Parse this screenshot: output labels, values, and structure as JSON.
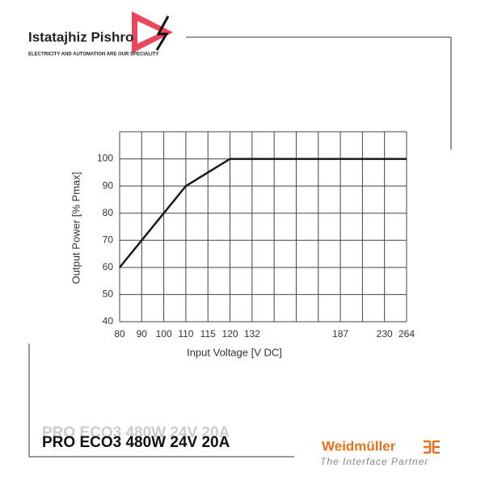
{
  "header": {
    "brand": "Istatajhiz Pishro",
    "tagline": "ELECTRICITY AND AUTOMATION ARE OUR SPECIALITY"
  },
  "chart_data": {
    "type": "line",
    "x_label": "Input Voltage [V DC]",
    "y_label": "Output Power [% Pmax]",
    "categories": [
      "80",
      "90",
      "100",
      "110",
      "115",
      "120",
      "132",
      null,
      null,
      null,
      "187",
      null,
      "230",
      "264"
    ],
    "values": [
      60,
      70,
      80,
      90,
      95,
      100,
      100,
      100,
      100,
      100,
      100,
      100,
      100,
      100
    ],
    "color": "#1a1a1a",
    "ylim": [
      40,
      110
    ],
    "yticks": [
      40,
      50,
      60,
      70,
      80,
      90,
      100
    ],
    "grid": true
  },
  "footer": {
    "product": "PRO ECO3 480W 24V 20A",
    "maker": "Weidmüller",
    "slogan": "The Interface Partner"
  }
}
